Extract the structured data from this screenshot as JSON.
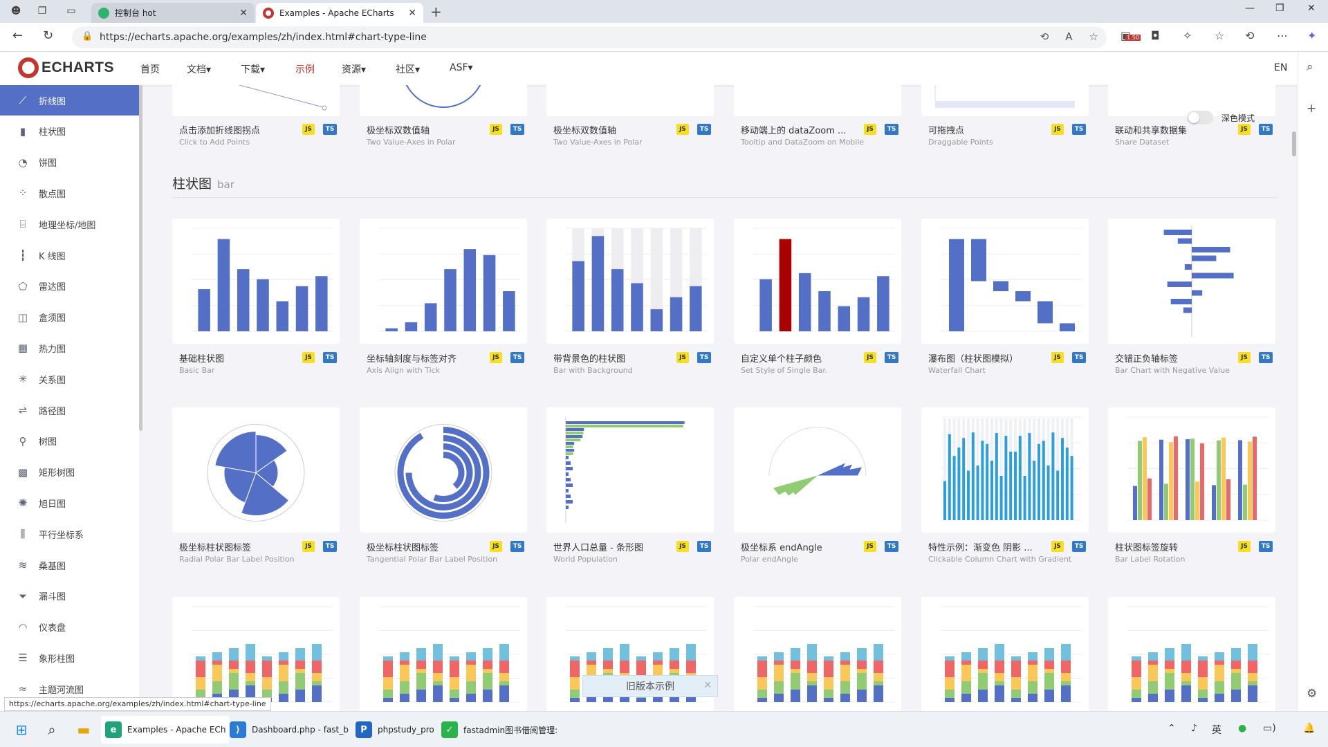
{
  "browser": {
    "tabs": [
      {
        "title": "控制台 hot",
        "active": false
      },
      {
        "title": "Examples - Apache ECharts",
        "active": true
      }
    ],
    "url": "https://echarts.apache.org/examples/zh/index.html#chart-type-line",
    "badge_count": "1.50"
  },
  "nav": {
    "logo": "ECHARTS",
    "items": [
      "首页",
      "文档▾",
      "下载▾",
      "示例",
      "资源▾",
      "社区▾",
      "ASF▾"
    ],
    "current": "示例",
    "lang": "EN"
  },
  "sidebar": {
    "items": [
      {
        "label": "折线图",
        "icon": "line-chart-icon",
        "glyph": "⟋"
      },
      {
        "label": "柱状图",
        "icon": "bar-chart-icon",
        "glyph": "▮"
      },
      {
        "label": "饼图",
        "icon": "pie-chart-icon",
        "glyph": "◔"
      },
      {
        "label": "散点图",
        "icon": "scatter-chart-icon",
        "glyph": "⁘"
      },
      {
        "label": "地理坐标/地图",
        "icon": "map-icon",
        "glyph": "⌸"
      },
      {
        "label": "K 线图",
        "icon": "candlestick-icon",
        "glyph": "┇"
      },
      {
        "label": "雷达图",
        "icon": "radar-icon",
        "glyph": "⬠"
      },
      {
        "label": "盒须图",
        "icon": "boxplot-icon",
        "glyph": "◫"
      },
      {
        "label": "热力图",
        "icon": "heatmap-icon",
        "glyph": "▦"
      },
      {
        "label": "关系图",
        "icon": "graph-icon",
        "glyph": "✳"
      },
      {
        "label": "路径图",
        "icon": "lines-icon",
        "glyph": "⇌"
      },
      {
        "label": "树图",
        "icon": "tree-icon",
        "glyph": "⚲"
      },
      {
        "label": "矩形树图",
        "icon": "treemap-icon",
        "glyph": "▩"
      },
      {
        "label": "旭日图",
        "icon": "sunburst-icon",
        "glyph": "✺"
      },
      {
        "label": "平行坐标系",
        "icon": "parallel-icon",
        "glyph": "⫼"
      },
      {
        "label": "桑基图",
        "icon": "sankey-icon",
        "glyph": "≋"
      },
      {
        "label": "漏斗图",
        "icon": "funnel-icon",
        "glyph": "⏷"
      },
      {
        "label": "仪表盘",
        "icon": "gauge-icon",
        "glyph": "◠"
      },
      {
        "label": "象形柱图",
        "icon": "pictorial-bar-icon",
        "glyph": "☰"
      },
      {
        "label": "主题河流图",
        "icon": "theme-river-icon",
        "glyph": "≈"
      }
    ],
    "current": "折线图"
  },
  "dark_mode_label": "深色模式",
  "line_row": [
    {
      "title": "点击添加折线图拐点",
      "subtitle": "Click to Add Points"
    },
    {
      "title": "极坐标双数值轴",
      "subtitle": "Two Value-Axes in Polar"
    },
    {
      "title": "极坐标双数值轴",
      "subtitle": "Two Value-Axes in Polar"
    },
    {
      "title": "移动端上的 dataZoom ...",
      "subtitle": "Tooltip and DataZoom on Mobile"
    },
    {
      "title": "可拖拽点",
      "subtitle": "Draggable Points"
    },
    {
      "title": "联动和共享数据集",
      "subtitle": "Share Dataset"
    }
  ],
  "bar_section": {
    "title": "柱状图",
    "sub": "bar"
  },
  "bar_row1": [
    {
      "title": "基础柱状图",
      "subtitle": "Basic Bar"
    },
    {
      "title": "坐标轴刻度与标签对齐",
      "subtitle": "Axis Align with Tick"
    },
    {
      "title": "带背景色的柱状图",
      "subtitle": "Bar with Background"
    },
    {
      "title": "自定义单个柱子颜色",
      "subtitle": "Set Style of Single Bar."
    },
    {
      "title": "瀑布图（柱状图模拟）",
      "subtitle": "Waterfall Chart"
    },
    {
      "title": "交错正负轴标签",
      "subtitle": "Bar Chart with Negative Value"
    }
  ],
  "bar_row2": [
    {
      "title": "极坐标柱状图标签",
      "subtitle": "Radial Polar Bar Label Position"
    },
    {
      "title": "极坐标柱状图标签",
      "subtitle": "Tangential Polar Bar Label Position"
    },
    {
      "title": "世界人口总量 - 条形图",
      "subtitle": "World Population"
    },
    {
      "title": "极坐标系 endAngle",
      "subtitle": "Polar endAngle"
    },
    {
      "title": "特性示例：渐变色 阴影 ...",
      "subtitle": "Clickable Column Chart with Gradient"
    },
    {
      "title": "柱状图标签旋转",
      "subtitle": "Bar Label Rotation"
    }
  ],
  "badges": {
    "js": "JS",
    "ts": "TS"
  },
  "old_version": "旧版本示例",
  "status_url": "https://echarts.apache.org/examples/zh/index.html#chart-type-line",
  "taskbar": {
    "apps": [
      {
        "label": "Examples - Apache ECh",
        "icon": "edge-icon",
        "active": true
      },
      {
        "label": "Dashboard.php - fast_b",
        "icon": "vscode-icon",
        "active": false
      },
      {
        "label": "phpstudy_pro",
        "icon": "phpstudy-icon",
        "active": false
      },
      {
        "label": "fastadmin图书借阅管理:",
        "icon": "wechat-icon",
        "active": false
      }
    ],
    "ime": "英"
  },
  "colors": {
    "accent": "#5470c6",
    "brand": "#c23531",
    "green": "#91cc75",
    "yellow": "#fac858",
    "red": "#ee6666",
    "cyan": "#73c0de",
    "darkred": "#a90000"
  }
}
